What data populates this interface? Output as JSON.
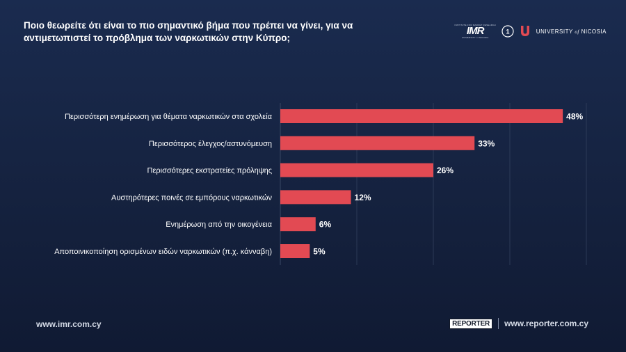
{
  "header": {
    "question": "Ποιο θεωρείτε ότι είναι το πιο σημαντικό βήμα που πρέπει να γίνει, για να αντιμετωπιστεί το πρόβλημα των ναρκωτικών στην Κύπρο;"
  },
  "logos": {
    "imr_small": "INSTITUTE FOR MARKET RESEARCH",
    "imr": "IMR",
    "imr_sub": "UNIVERSITY of NICOSIA",
    "university_label": "UNIVERSITY",
    "university_of": "of",
    "university_name": "NICOSIA"
  },
  "footer": {
    "left_url": "www.imr.com.cy",
    "reporter_logo": "REPORTER",
    "right_url": "www.reporter.com.cy"
  },
  "colors": {
    "bar": "#e24a53",
    "background": "#15223f",
    "grid": "#33415e",
    "text": "#ffffff"
  },
  "chart_data": {
    "type": "bar",
    "orientation": "horizontal",
    "categories": [
      "Περισσότερη ενημέρωση για θέματα ναρκωτικών στα σχολεία",
      "Περισσότερος έλεγχος/αστυνόμευση",
      "Περισσότερες εκστρατείες πρόληψης",
      "Αυστηρότερες ποινές σε εμπόρους ναρκωτικών",
      "Ενημέρωση από την οικογένεια",
      "Αποποινικοποίηση ορισμένων ειδών ναρκωτικών (π.χ. κάνναβη)"
    ],
    "values": [
      48,
      33,
      26,
      12,
      6,
      5
    ],
    "value_labels": [
      "48%",
      "33%",
      "26%",
      "12%",
      "6%",
      "5%"
    ],
    "xlim": [
      0,
      52
    ],
    "grid": true
  }
}
